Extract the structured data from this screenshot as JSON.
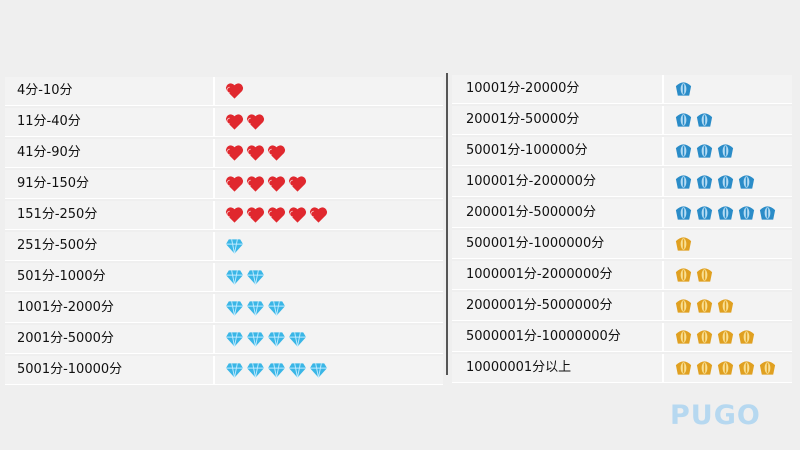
{
  "left_table": [
    {
      "range": "4分-10分",
      "icon": "heart-icon",
      "count": 1
    },
    {
      "range": "11分-40分",
      "icon": "heart-icon",
      "count": 2
    },
    {
      "range": "41分-90分",
      "icon": "heart-icon",
      "count": 3
    },
    {
      "range": "91分-150分",
      "icon": "heart-icon",
      "count": 4
    },
    {
      "range": "151分-250分",
      "icon": "heart-icon",
      "count": 5
    },
    {
      "range": "251分-500分",
      "icon": "diamond-icon",
      "count": 1
    },
    {
      "range": "501分-1000分",
      "icon": "diamond-icon",
      "count": 2
    },
    {
      "range": "1001分-2000分",
      "icon": "diamond-icon",
      "count": 3
    },
    {
      "range": "2001分-5000分",
      "icon": "diamond-icon",
      "count": 4
    },
    {
      "range": "5001分-10000分",
      "icon": "diamond-icon",
      "count": 5
    }
  ],
  "right_table": [
    {
      "range": "10001分-20000分",
      "icon": "blue-crown-icon",
      "count": 1
    },
    {
      "range": "20001分-50000分",
      "icon": "blue-crown-icon",
      "count": 2
    },
    {
      "range": "50001分-100000分",
      "icon": "blue-crown-icon",
      "count": 3
    },
    {
      "range": "100001分-200000分",
      "icon": "blue-crown-icon",
      "count": 4
    },
    {
      "range": "200001分-500000分",
      "icon": "blue-crown-icon",
      "count": 5
    },
    {
      "range": "500001分-1000000分",
      "icon": "gold-crown-icon",
      "count": 1
    },
    {
      "range": "1000001分-2000000分",
      "icon": "gold-crown-icon",
      "count": 2
    },
    {
      "range": "2000001分-5000000分",
      "icon": "gold-crown-icon",
      "count": 3
    },
    {
      "range": "5000001分-10000000分",
      "icon": "gold-crown-icon",
      "count": 4
    },
    {
      "range": "10000001分以上",
      "icon": "gold-crown-icon",
      "count": 5
    }
  ],
  "colors": {
    "heart": "#e0282e",
    "diamond": "#3ab6e6",
    "blue_crown": "#2a8cc8",
    "gold_crown": "#e0a020"
  },
  "watermark": "PUGO"
}
